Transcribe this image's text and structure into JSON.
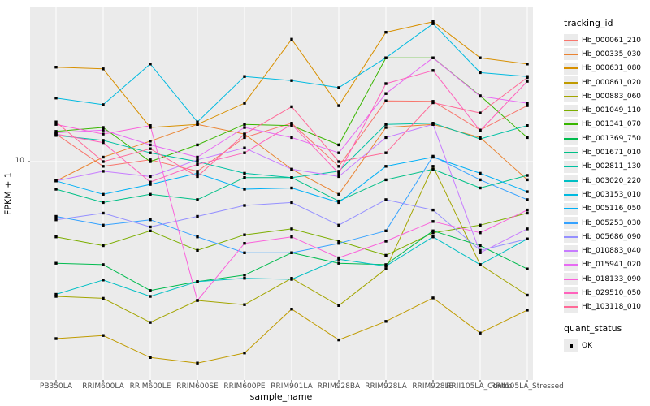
{
  "chart_data": {
    "type": "line",
    "title": "",
    "xlabel": "sample_name",
    "ylabel": "FPKM + 1",
    "y_scale": "log10",
    "y_tick_label": "10",
    "ylim": [
      0.92,
      54
    ],
    "grid": "major-only",
    "panel_bg": "#EBEBEB",
    "grid_color": "#FFFFFF",
    "point_color": "#000000",
    "legend_position": "right",
    "legend_title": "tracking_id",
    "categories": [
      "PB350LA",
      "RRIM600LA",
      "RRIM600LE",
      "RRIM600SE",
      "RRIM600PE",
      "RRIM901LA",
      "RRIM928BA",
      "RRIM928LA",
      "RRIM928LB",
      "RRII105LA_Control",
      "RRII105LA_Stressed"
    ],
    "series": [
      {
        "name": "Hb_000061_210",
        "color": "#F8766D",
        "values": [
          13.5,
          9.5,
          10.2,
          9.0,
          13.0,
          15.2,
          9.5,
          19.4,
          19.3,
          14.1,
          18.4
        ]
      },
      {
        "name": "Hb_000335_030",
        "color": "#EA8331",
        "values": [
          8.1,
          10.5,
          12.5,
          15.0,
          13.5,
          9.2,
          7.0,
          14.5,
          15.0,
          13.0,
          8.2
        ]
      },
      {
        "name": "Hb_000631_080",
        "color": "#D89000",
        "values": [
          28,
          27.5,
          14.5,
          15.0,
          18.9,
          38,
          18.4,
          41,
          46,
          31,
          29
        ]
      },
      {
        "name": "Hb_000861_020",
        "color": "#C09B00",
        "values": [
          1.45,
          1.5,
          1.18,
          1.11,
          1.24,
          2.0,
          1.43,
          1.75,
          2.26,
          1.54,
          1.98
        ]
      },
      {
        "name": "Hb_000883_060",
        "color": "#A3A500",
        "values": [
          2.3,
          2.25,
          1.73,
          2.2,
          2.1,
          2.8,
          2.08,
          3.1,
          9.5,
          3.25,
          2.33
        ]
      },
      {
        "name": "Hb_001049_110",
        "color": "#7CAE00",
        "values": [
          4.4,
          4.0,
          4.7,
          3.8,
          4.5,
          4.8,
          4.2,
          3.6,
          4.6,
          5.0,
          5.7
        ]
      },
      {
        "name": "Hb_001341_070",
        "color": "#39B600",
        "values": [
          13.9,
          14.5,
          10.0,
          12.0,
          15.0,
          14.8,
          12.0,
          31,
          31,
          20.5,
          13.0
        ]
      },
      {
        "name": "Hb_001369_750",
        "color": "#00BB4E",
        "values": [
          3.3,
          3.25,
          2.45,
          2.7,
          2.9,
          3.7,
          3.3,
          3.25,
          4.7,
          4.0,
          3.1
        ]
      },
      {
        "name": "Hb_001671_010",
        "color": "#00C087",
        "values": [
          7.4,
          6.4,
          7.0,
          6.6,
          8.4,
          8.4,
          6.5,
          8.2,
          9.2,
          7.5,
          8.6
        ]
      },
      {
        "name": "Hb_002811_130",
        "color": "#00C1A3",
        "values": [
          13.3,
          12.6,
          11.0,
          10.0,
          8.8,
          8.4,
          9.0,
          15.0,
          15.2,
          12.8,
          14.8
        ]
      },
      {
        "name": "Hb_003020_220",
        "color": "#00BFC4",
        "values": [
          2.35,
          2.75,
          2.3,
          2.7,
          2.8,
          2.77,
          3.45,
          3.2,
          4.4,
          3.25,
          4.3
        ]
      },
      {
        "name": "Hb_003153_010",
        "color": "#00BAE0",
        "values": [
          20,
          18.6,
          29,
          15.4,
          25.3,
          24.2,
          22.4,
          31,
          45,
          26.4,
          25.3
        ]
      },
      {
        "name": "Hb_005116_050",
        "color": "#00B0F6",
        "values": [
          8.1,
          7.0,
          7.8,
          8.8,
          7.4,
          7.5,
          6.4,
          9.5,
          10.5,
          8.8,
          7.2
        ]
      },
      {
        "name": "Hb_005253_030",
        "color": "#35A2FF",
        "values": [
          5.5,
          5.0,
          5.3,
          4.4,
          3.7,
          3.7,
          4.1,
          4.7,
          10.6,
          8.2,
          6.6
        ]
      },
      {
        "name": "Hb_005686_090",
        "color": "#9590FF",
        "values": [
          5.3,
          5.7,
          4.9,
          5.5,
          6.2,
          6.4,
          5.0,
          6.6,
          5.9,
          3.8,
          4.3
        ]
      },
      {
        "name": "Hb_010883_040",
        "color": "#C77CFF",
        "values": [
          8.1,
          9.0,
          8.5,
          10.2,
          11.6,
          9.2,
          8.5,
          13.0,
          15.0,
          3.7,
          4.8
        ]
      },
      {
        "name": "Hb_015941_020",
        "color": "#E76BF3",
        "values": [
          13.7,
          14.1,
          12.0,
          10.5,
          14.5,
          13.0,
          11.0,
          21,
          31,
          20.4,
          18.9
        ]
      },
      {
        "name": "Hb_018133_090",
        "color": "#FA62DB",
        "values": [
          15.0,
          13.5,
          14.8,
          2.2,
          4.1,
          4.4,
          3.5,
          4.2,
          5.2,
          4.6,
          5.9
        ]
      },
      {
        "name": "Hb_029510_050",
        "color": "#FF62BC",
        "values": [
          13.5,
          12.3,
          8.0,
          9.7,
          11.0,
          15.0,
          8.8,
          23.4,
          27,
          14.0,
          24
        ]
      },
      {
        "name": "Hb_103118_010",
        "color": "#FF6A98",
        "values": [
          15.4,
          10.0,
          11.5,
          8.5,
          13.5,
          18.2,
          10.0,
          11.0,
          19.0,
          17.0,
          25
        ]
      }
    ],
    "quant_legend": {
      "title": "quant_status",
      "items": [
        "OK"
      ]
    }
  },
  "legend": {
    "tracking_title": "tracking_id",
    "quant_title": "quant_status",
    "quant_ok": "OK"
  }
}
